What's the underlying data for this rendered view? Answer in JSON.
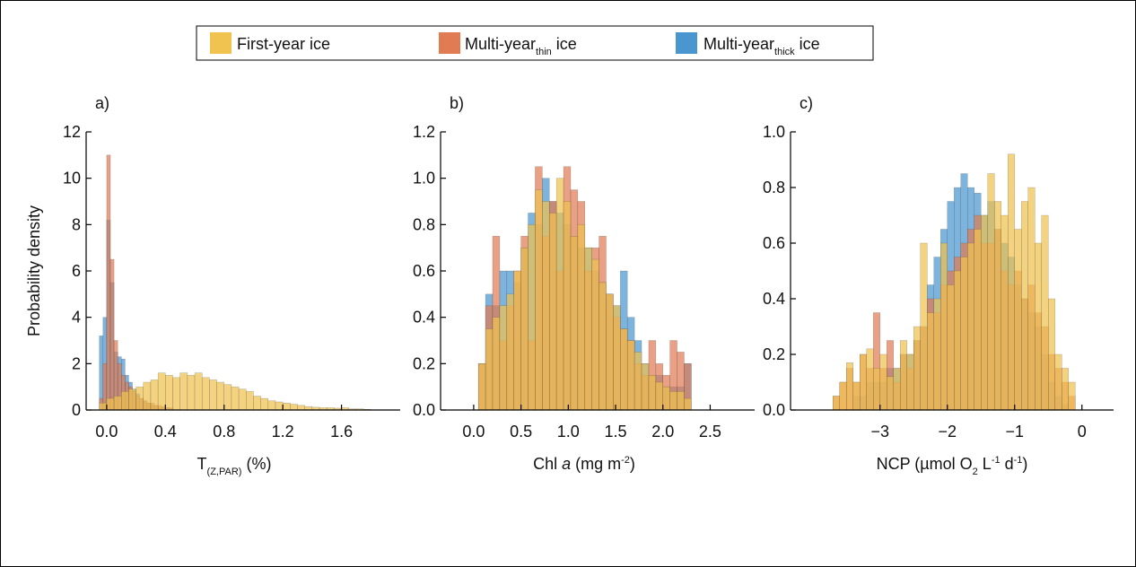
{
  "legend": [
    {
      "name": "First-year ice",
      "color": "#f0c24f"
    },
    {
      "name": "Multi-year",
      "sub": "thin",
      "rest": " ice",
      "color": "#e07b54"
    },
    {
      "name": "Multi-year",
      "sub": "thick",
      "rest": " ice",
      "color": "#4a97d0"
    }
  ],
  "chart_data": [
    {
      "type": "histogram",
      "label": "a)",
      "ylabel": "Probability density",
      "xlabel": [
        {
          "text": "T",
          "style": "normal"
        },
        {
          "text": "(Z,PAR)",
          "style": "sub"
        },
        {
          "text": " (%)",
          "style": "normal"
        }
      ],
      "xlim": [
        -0.14,
        2.0
      ],
      "ylim": [
        0,
        12
      ],
      "xticks": [
        {
          "value": 0,
          "label": "0.0"
        },
        0.4,
        0.8,
        1.2,
        1.6
      ],
      "yticks": [
        0,
        2,
        4,
        6,
        8,
        10,
        12
      ],
      "series": [
        {
          "legend": 2,
          "color": "#4a97d0",
          "bins": [
            -0.05,
            -0.025,
            0,
            0.025,
            0.05,
            0.075,
            0.1,
            0.125,
            0.15,
            0.175,
            0.2,
            0.225,
            0.25,
            0.275,
            0.3,
            0.325,
            0.35,
            0.375,
            0.4,
            0.425,
            0.45
          ],
          "values": [
            3.2,
            4.0,
            8.2,
            5.5,
            2.5,
            2.3,
            2.2,
            1.5,
            1.2,
            0.9,
            0.7,
            0.5,
            0.4,
            0.3,
            0.2,
            0.2,
            0.1,
            0.1,
            0.1,
            0.05
          ]
        },
        {
          "legend": 1,
          "color": "#e07b54",
          "bins": [
            -0.05,
            -0.025,
            0,
            0.025,
            0.05,
            0.075,
            0.1,
            0.125,
            0.15,
            0.175,
            0.2,
            0.225,
            0.25,
            0.275,
            0.3,
            0.325,
            0.35,
            0.375,
            0.4,
            0.425,
            0.45
          ],
          "values": [
            0.5,
            2.0,
            11.0,
            6.5,
            3.0,
            2.0,
            1.5,
            1.2,
            1.0,
            0.8,
            0.6,
            0.5,
            0.4,
            0.3,
            0.3,
            0.2,
            0.2,
            0.15,
            0.1,
            0.1
          ]
        },
        {
          "legend": 0,
          "color": "#f0c24f",
          "bins": [
            -0.05,
            0,
            0.05,
            0.1,
            0.15,
            0.2,
            0.25,
            0.3,
            0.35,
            0.4,
            0.45,
            0.5,
            0.55,
            0.6,
            0.65,
            0.7,
            0.75,
            0.8,
            0.85,
            0.9,
            0.95,
            1.0,
            1.05,
            1.1,
            1.15,
            1.2,
            1.25,
            1.3,
            1.35,
            1.4,
            1.45,
            1.5,
            1.55,
            1.6,
            1.65,
            1.7,
            1.75,
            1.8
          ],
          "values": [
            0.3,
            0.5,
            0.6,
            0.8,
            0.9,
            1.0,
            1.2,
            1.3,
            1.6,
            1.5,
            1.4,
            1.6,
            1.5,
            1.6,
            1.4,
            1.3,
            1.2,
            1.1,
            1.0,
            0.9,
            0.8,
            0.6,
            0.5,
            0.4,
            0.35,
            0.3,
            0.25,
            0.2,
            0.15,
            0.12,
            0.1,
            0.1,
            0.08,
            0.1,
            0.05,
            0.05,
            0.03
          ]
        }
      ]
    },
    {
      "type": "histogram",
      "label": "b)",
      "xlabel": [
        {
          "text": "Chl ",
          "style": "normal"
        },
        {
          "text": "a",
          "style": "italic"
        },
        {
          "text": " (mg m",
          "style": "normal"
        },
        {
          "text": "-2",
          "style": "sup"
        },
        {
          "text": ")",
          "style": "normal"
        }
      ],
      "xlim": [
        -0.35,
        2.97
      ],
      "ylim": [
        0,
        1.2
      ],
      "xticks": [
        {
          "value": 0,
          "label": "0.0"
        },
        0.5,
        {
          "value": 1,
          "label": "1.0"
        },
        1.5,
        {
          "value": 2,
          "label": "2.0"
        },
        2.5
      ],
      "yticks": [
        {
          "value": 0,
          "label": "0.0"
        },
        0.2,
        0.4,
        0.6,
        0.8,
        {
          "value": 1,
          "label": "1.0"
        },
        1.2
      ],
      "series": [
        {
          "legend": 2,
          "color": "#4a97d0",
          "bins": [
            0.05,
            0.125,
            0.2,
            0.275,
            0.35,
            0.425,
            0.5,
            0.575,
            0.65,
            0.725,
            0.8,
            0.875,
            0.95,
            1.025,
            1.1,
            1.175,
            1.25,
            1.325,
            1.4,
            1.475,
            1.55,
            1.625,
            1.7,
            1.775,
            1.85,
            1.925,
            2.0,
            2.075,
            2.15,
            2.225,
            2.3
          ],
          "values": [
            0.2,
            0.5,
            0.45,
            0.6,
            0.6,
            0.55,
            0.7,
            0.85,
            0.8,
            1.0,
            0.9,
            0.85,
            0.8,
            0.75,
            0.7,
            0.7,
            0.6,
            0.55,
            0.5,
            0.45,
            0.6,
            0.4,
            0.3,
            0.2,
            0.15,
            0.15,
            0.1,
            0.1,
            0.1,
            0.2
          ]
        },
        {
          "legend": 1,
          "color": "#e07b54",
          "bins": [
            0.05,
            0.125,
            0.2,
            0.275,
            0.35,
            0.425,
            0.5,
            0.575,
            0.65,
            0.725,
            0.8,
            0.875,
            0.95,
            1.025,
            1.1,
            1.175,
            1.25,
            1.325,
            1.4,
            1.475,
            1.55,
            1.625,
            1.7,
            1.775,
            1.85,
            1.925,
            2.0,
            2.075,
            2.15,
            2.225,
            2.3
          ],
          "values": [
            0.2,
            0.45,
            0.75,
            0.3,
            0.45,
            0.6,
            0.75,
            0.3,
            1.05,
            0.75,
            0.9,
            0.6,
            1.05,
            0.95,
            0.9,
            0.6,
            0.7,
            0.75,
            0.5,
            0.4,
            0.35,
            0.3,
            0.2,
            0.15,
            0.3,
            0.2,
            0.15,
            0.3,
            0.25,
            0.2
          ]
        },
        {
          "legend": 0,
          "color": "#f0c24f",
          "bins": [
            0.05,
            0.125,
            0.2,
            0.275,
            0.35,
            0.425,
            0.5,
            0.575,
            0.65,
            0.725,
            0.8,
            0.875,
            0.95,
            1.025,
            1.1,
            1.175,
            1.25,
            1.325,
            1.4,
            1.475,
            1.55,
            1.625,
            1.7,
            1.775,
            1.85,
            1.925,
            2.0,
            2.075,
            2.15,
            2.225,
            2.3
          ],
          "values": [
            0.2,
            0.35,
            0.4,
            0.45,
            0.5,
            0.6,
            0.7,
            0.8,
            0.95,
            0.9,
            0.85,
            1.0,
            0.9,
            0.75,
            0.8,
            0.7,
            0.65,
            0.55,
            0.5,
            0.45,
            0.35,
            0.3,
            0.25,
            0.2,
            0.15,
            0.12,
            0.1,
            0.08,
            0.08,
            0.05
          ]
        }
      ]
    },
    {
      "type": "histogram",
      "label": "c)",
      "xlabel": [
        {
          "text": "NCP (µmol O",
          "style": "normal"
        },
        {
          "text": "2",
          "style": "sub"
        },
        {
          "text": " L",
          "style": "normal"
        },
        {
          "text": "-1",
          "style": "sup"
        },
        {
          "text": " d",
          "style": "normal"
        },
        {
          "text": "-1",
          "style": "sup"
        },
        {
          "text": ")",
          "style": "normal"
        }
      ],
      "xlim": [
        -4.33,
        0.47
      ],
      "ylim": [
        0,
        1.0
      ],
      "xticks": [
        {
          "value": -3,
          "label": "−3"
        },
        {
          "value": -2,
          "label": "−2"
        },
        {
          "value": -1,
          "label": "−1"
        },
        0
      ],
      "yticks": [
        {
          "value": 0,
          "label": "0.0"
        },
        0.2,
        0.4,
        0.6,
        0.8,
        {
          "value": 1,
          "label": "1.0"
        }
      ],
      "series": [
        {
          "legend": 2,
          "color": "#4a97d0",
          "bins": [
            -3.7,
            -3.6,
            -3.5,
            -3.4,
            -3.3,
            -3.2,
            -3.1,
            -3.0,
            -2.9,
            -2.8,
            -2.7,
            -2.6,
            -2.5,
            -2.4,
            -2.3,
            -2.2,
            -2.1,
            -2.0,
            -1.9,
            -1.8,
            -1.7,
            -1.6,
            -1.5,
            -1.4,
            -1.3,
            -1.2,
            -1.1,
            -1.0,
            -0.9,
            -0.8,
            -0.7,
            -0.6,
            -0.5,
            -0.4,
            -0.3,
            -0.2,
            -0.1
          ],
          "values": [
            0,
            0,
            0,
            0.05,
            0.05,
            0.1,
            0.1,
            0.1,
            0.15,
            0.15,
            0.2,
            0.2,
            0.25,
            0.3,
            0.45,
            0.55,
            0.65,
            0.75,
            0.8,
            0.85,
            0.8,
            0.78,
            0.7,
            0.75,
            0.65,
            0.6,
            0.55,
            0.45,
            0.4,
            0.35,
            0.3,
            0.2,
            0.1,
            0.05,
            0.02,
            0
          ]
        },
        {
          "legend": 1,
          "color": "#e07b54",
          "bins": [
            -3.7,
            -3.6,
            -3.5,
            -3.4,
            -3.3,
            -3.2,
            -3.1,
            -3.0,
            -2.9,
            -2.8,
            -2.7,
            -2.6,
            -2.5,
            -2.4,
            -2.3,
            -2.2,
            -2.1,
            -2.0,
            -1.9,
            -1.8,
            -1.7,
            -1.6,
            -1.5,
            -1.4,
            -1.3,
            -1.2,
            -1.1,
            -1.0,
            -0.9,
            -0.8,
            -0.7,
            -0.6,
            -0.5,
            -0.4,
            -0.3,
            -0.2,
            -0.1
          ],
          "values": [
            0.05,
            0.1,
            0.15,
            0.1,
            0.2,
            0.15,
            0.35,
            0.15,
            0.25,
            0.1,
            0.2,
            0.15,
            0.25,
            0.3,
            0.4,
            0.35,
            0.45,
            0.5,
            0.55,
            0.6,
            0.65,
            0.7,
            0.6,
            0.6,
            0.65,
            0.5,
            0.45,
            0.5,
            0.4,
            0.45,
            0.35,
            0.3,
            0.2,
            0.15,
            0.1,
            0.05
          ]
        },
        {
          "legend": 0,
          "color": "#f0c24f",
          "bins": [
            -3.7,
            -3.6,
            -3.5,
            -3.4,
            -3.3,
            -3.2,
            -3.1,
            -3.0,
            -2.9,
            -2.8,
            -2.7,
            -2.6,
            -2.5,
            -2.4,
            -2.3,
            -2.2,
            -2.1,
            -2.0,
            -1.9,
            -1.8,
            -1.7,
            -1.6,
            -1.5,
            -1.4,
            -1.3,
            -1.2,
            -1.1,
            -1.0,
            -0.9,
            -0.8,
            -0.7,
            -0.6,
            -0.5,
            -0.4,
            -0.3,
            -0.2,
            -0.1
          ],
          "values": [
            0.05,
            0.1,
            0.17,
            0.1,
            0.2,
            0.22,
            0.15,
            0.2,
            0.12,
            0.15,
            0.25,
            0.2,
            0.3,
            0.6,
            0.35,
            0.4,
            0.6,
            0.45,
            0.5,
            0.55,
            0.6,
            0.65,
            0.7,
            0.85,
            0.75,
            0.7,
            0.92,
            0.65,
            0.75,
            0.8,
            0.6,
            0.7,
            0.4,
            0.2,
            0.15,
            0.1
          ]
        }
      ]
    }
  ]
}
